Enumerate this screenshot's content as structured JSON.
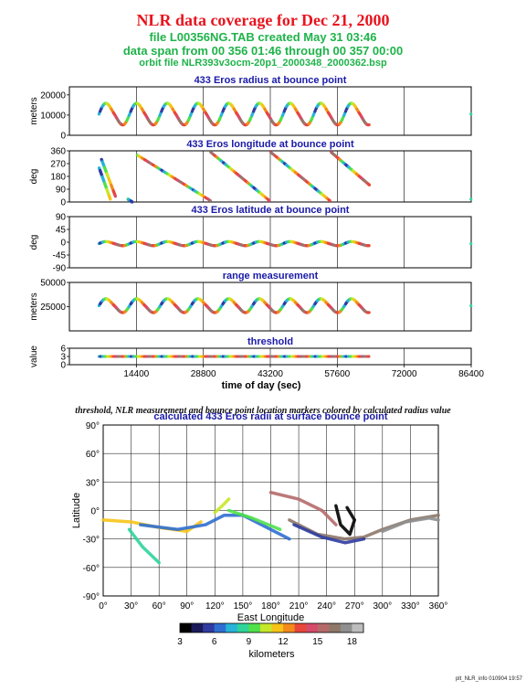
{
  "header": {
    "title": "NLR data coverage for Dec 21, 2000",
    "file_line": "file L00356NG.TAB created May 31 03:46",
    "span_line": "data span from 00 356 01:46 through 00 357 00:00",
    "orbit_line": "orbit file NLR393v3ocm-20p1_2000348_2000362.bsp"
  },
  "caption": "threshold, NLR measurement and bounce point location markers colored by calculated radius value",
  "footer": "plt_NLR_info 010904 19:57",
  "colors": {
    "title": "#e8141e",
    "subtitle": "#1fb34a",
    "panel_title": "#1a1aa8",
    "colormap": [
      "#000000",
      "#1a1a5a",
      "#2f3ba0",
      "#2f6fd2",
      "#27b4d8",
      "#2fd49a",
      "#4fe04a",
      "#c6e82a",
      "#f6c418",
      "#f28a1c",
      "#e8463a",
      "#d64a6a",
      "#b56a6a",
      "#8e7868",
      "#8f8f8f",
      "#bdbdbd"
    ]
  },
  "chart_data": [
    {
      "type": "scatter",
      "title": "433 Eros radius at bounce point",
      "ylabel": "meters",
      "xlim": [
        0,
        86400
      ],
      "ylim": [
        0,
        24000
      ],
      "yticks": [
        "0",
        "10000",
        "20000"
      ],
      "xticks": [
        14400,
        28800,
        43200,
        57600,
        72000,
        86400
      ],
      "data_span_sec": [
        6360,
        64500
      ],
      "representation": "wavy track oscillating between about 4000 and 17000 m, with a short isolated segment near 86400",
      "y_pattern": {
        "mean": 10500,
        "amplitude": 6000,
        "period_sec": 6600
      }
    },
    {
      "type": "scatter",
      "title": "433 Eros longitude at bounce point",
      "ylabel": "deg",
      "xlim": [
        0,
        86400
      ],
      "ylim": [
        0,
        360
      ],
      "yticks": [
        "0",
        "90",
        "180",
        "270",
        "360"
      ],
      "representation": "sawtooth diagonal tracks descending from 360 to 0, repeating about every 15500 s",
      "segments": [
        [
          6400,
          240,
          8800,
          20
        ],
        [
          6900,
          300,
          9900,
          40
        ],
        [
          12600,
          20,
          13500,
          0
        ],
        [
          14600,
          330,
          30300,
          10
        ],
        [
          30400,
          350,
          43000,
          10
        ],
        [
          43300,
          350,
          56000,
          10
        ],
        [
          56300,
          350,
          64500,
          120
        ]
      ]
    },
    {
      "type": "scatter",
      "title": "433 Eros latitude at bounce point",
      "ylabel": "deg",
      "xlim": [
        0,
        86400
      ],
      "ylim": [
        -90,
        90
      ],
      "yticks": [
        "-90",
        "-45",
        "0",
        "45",
        "90"
      ],
      "representation": "band around -10 to 0 deg with spikes up to about 15 deg",
      "y_pattern": {
        "mean": -5,
        "amplitude": 8,
        "period_sec": 6600
      }
    },
    {
      "type": "scatter",
      "title": "range measurement",
      "ylabel": "meters",
      "xlim": [
        0,
        86400
      ],
      "ylim": [
        0,
        50000
      ],
      "yticks": [
        "25000",
        "50000"
      ],
      "representation": "wavy track between about 16000 and 36000 m",
      "y_pattern": {
        "mean": 26000,
        "amplitude": 8000,
        "period_sec": 6600
      }
    },
    {
      "type": "scatter",
      "title": "threshold",
      "ylabel": "value",
      "xlabel": "time of day (sec)",
      "xlim": [
        0,
        86400
      ],
      "ylim": [
        0,
        6
      ],
      "yticks": [
        "0",
        "3",
        "6"
      ],
      "xtick_labels": [
        "14400",
        "28800",
        "43200",
        "57600",
        "72000",
        "86400"
      ],
      "representation": "constant line at value 3 from 6360 to 64500 s"
    },
    {
      "type": "scatter",
      "title": "calculated 433 Eros radii at surface bounce point",
      "xlabel": "East Longitude",
      "ylabel": "Latitude",
      "xlim": [
        0,
        360
      ],
      "ylim": [
        -90,
        90
      ],
      "xtick_labels": [
        "0°",
        "30°",
        "60°",
        "90°",
        "120°",
        "150°",
        "180°",
        "210°",
        "240°",
        "270°",
        "300°",
        "330°",
        "360°"
      ],
      "ytick_labels": [
        "-90°",
        "-60°",
        "-30°",
        "0°",
        "30°",
        "60°",
        "90°"
      ],
      "colorbar": {
        "label": "kilometers",
        "ticks": [
          "3",
          "6",
          "9",
          "12",
          "15",
          "18"
        ],
        "range": [
          3,
          19
        ]
      },
      "tracks": [
        {
          "points": [
            [
              0,
              -10
            ],
            [
              30,
              -12
            ],
            [
              60,
              -18
            ],
            [
              90,
              -22
            ],
            [
              105,
              -12
            ]
          ],
          "radius_km": 11
        },
        {
          "points": [
            [
              28,
              -20
            ],
            [
              42,
              -38
            ],
            [
              60,
              -55
            ]
          ],
          "radius_km": 8
        },
        {
          "points": [
            [
              40,
              -15
            ],
            [
              80,
              -20
            ],
            [
              110,
              -15
            ],
            [
              130,
              -5
            ],
            [
              150,
              -5
            ],
            [
              180,
              -20
            ],
            [
              200,
              -30
            ]
          ],
          "radius_km": 6
        },
        {
          "points": [
            [
              120,
              -2
            ],
            [
              128,
              5
            ],
            [
              135,
              12
            ]
          ],
          "radius_km": 10
        },
        {
          "points": [
            [
              135,
              0
            ],
            [
              160,
              -8
            ],
            [
              190,
              -20
            ]
          ],
          "radius_km": 9
        },
        {
          "points": [
            [
              180,
              19
            ],
            [
              210,
              12
            ],
            [
              235,
              0
            ],
            [
              250,
              -15
            ]
          ],
          "radius_km": 15
        },
        {
          "points": [
            [
              200,
              -10
            ],
            [
              230,
              -25
            ],
            [
              260,
              -30
            ],
            [
              280,
              -28
            ],
            [
              300,
              -20
            ],
            [
              330,
              -10
            ],
            [
              360,
              -5
            ]
          ],
          "radius_km": 16
        },
        {
          "points": [
            [
              205,
              -15
            ],
            [
              235,
              -28
            ],
            [
              260,
              -34
            ],
            [
              280,
              -30
            ]
          ],
          "radius_km": 5
        },
        {
          "points": [
            [
              250,
              5
            ],
            [
              255,
              -15
            ],
            [
              265,
              -25
            ],
            [
              270,
              -10
            ],
            [
              262,
              3
            ]
          ],
          "radius_km": 3
        },
        {
          "points": [
            [
              300,
              -22
            ],
            [
              325,
              -12
            ],
            [
              350,
              -8
            ],
            [
              360,
              -10
            ]
          ],
          "radius_km": 17
        }
      ]
    }
  ]
}
